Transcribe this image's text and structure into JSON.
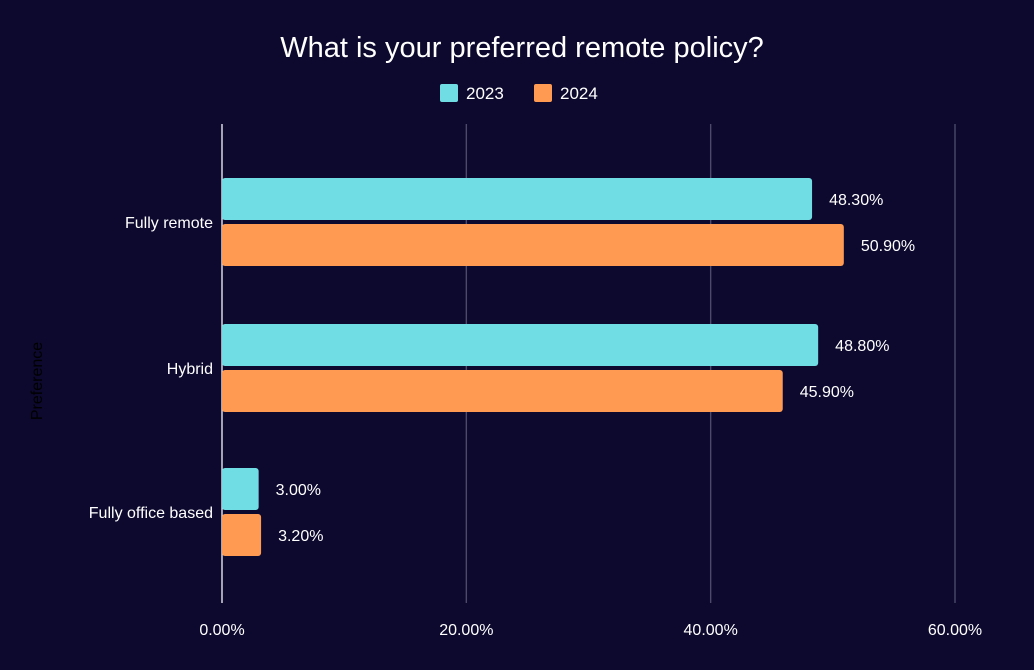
{
  "chart_data": {
    "type": "bar",
    "orientation": "horizontal",
    "title": "What is your preferred remote policy?",
    "ylabel": "Preference",
    "xlabel": "",
    "categories": [
      "Fully remote",
      "Hybrid",
      "Fully office based"
    ],
    "series": [
      {
        "name": "2023",
        "color": "#70dde4",
        "values": [
          48.3,
          48.8,
          3.0
        ],
        "labels": [
          "48.30%",
          "48.80%",
          "3.00%"
        ]
      },
      {
        "name": "2024",
        "color": "#ff9a52",
        "values": [
          50.9,
          45.9,
          3.2
        ],
        "labels": [
          "50.90%",
          "45.90%",
          "3.20%"
        ]
      }
    ],
    "xlim": [
      0,
      60
    ],
    "xticks": [
      0,
      20,
      40,
      60
    ],
    "xtick_labels": [
      "0.00%",
      "20.00%",
      "40.00%",
      "60.00%"
    ],
    "grid": true,
    "legend_position": "top-center"
  }
}
